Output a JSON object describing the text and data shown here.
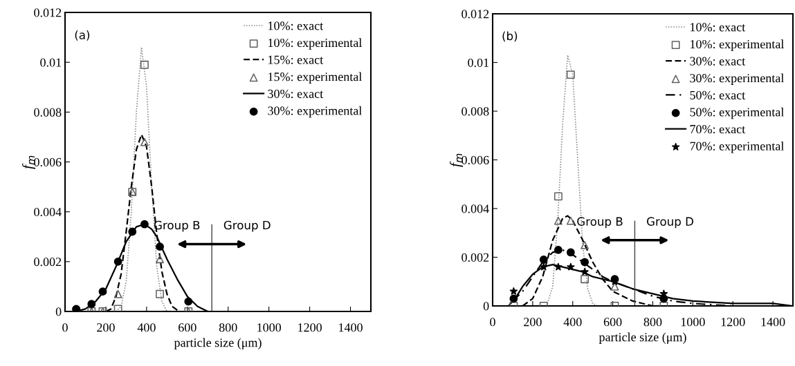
{
  "chart_data": [
    {
      "type": "line",
      "xlabel": "particle size (μm)",
      "ylabel": "f$_{m}$",
      "xlim": [
        0,
        1500
      ],
      "ylim": [
        0,
        0.012
      ],
      "xticks": [
        0,
        200,
        400,
        600,
        800,
        1000,
        1200,
        1400
      ],
      "yticks": [
        0,
        0.002,
        0.004,
        0.006,
        0.008,
        0.01,
        0.012
      ],
      "legend": "top right",
      "grid": false,
      "annotations": [
        "(a)",
        "Group B",
        "Group D"
      ],
      "ref_lines": [
        {
          "axis": "x",
          "value": 720,
          "color": "#404040"
        }
      ],
      "series": [
        {
          "name": "10%: exact",
          "type": "line",
          "line_style": "dotted",
          "color": "#909090",
          "x": [
            200,
            250,
            275,
            300,
            325,
            350,
            375,
            400,
            425,
            450,
            475,
            500,
            550
          ],
          "values": [
            0,
            0,
            0.0002,
            0.0012,
            0.004,
            0.008,
            0.0106,
            0.009,
            0.005,
            0.0018,
            0.0004,
            0,
            0
          ]
        },
        {
          "name": "10%: experimental",
          "type": "scatter",
          "marker": "square",
          "color": "#606060",
          "x": [
            55,
            130,
            185,
            260,
            330,
            390,
            465,
            605
          ],
          "values": [
            0,
            0,
            0,
            0.0001,
            0.0048,
            0.0099,
            0.0007,
            0
          ]
        },
        {
          "name": "15%: exact",
          "type": "line",
          "line_style": "dashed",
          "color": "#000000",
          "x": [
            200,
            225,
            250,
            275,
            300,
            325,
            350,
            375,
            400,
            425,
            450,
            475,
            500,
            525,
            560,
            600
          ],
          "values": [
            0,
            0.0001,
            0.0006,
            0.0015,
            0.0032,
            0.005,
            0.0065,
            0.0071,
            0.0066,
            0.005,
            0.0031,
            0.0016,
            0.0007,
            0.0002,
            0,
            0
          ]
        },
        {
          "name": "15%: experimental",
          "type": "scatter",
          "marker": "triangle",
          "color": "#606060",
          "x": [
            130,
            185,
            260,
            330,
            390,
            465,
            605
          ],
          "values": [
            0,
            0,
            0.0007,
            0.0048,
            0.0068,
            0.0021,
            0
          ]
        },
        {
          "name": "30%: exact",
          "type": "line",
          "line_style": "solid",
          "color": "#000000",
          "x": [
            50,
            100,
            150,
            200,
            250,
            300,
            350,
            390,
            425,
            450,
            500,
            550,
            600,
            650,
            700,
            720
          ],
          "values": [
            0,
            0.0001,
            0.0004,
            0.0009,
            0.0018,
            0.0028,
            0.0034,
            0.0035,
            0.0033,
            0.003,
            0.0021,
            0.0013,
            0.0006,
            0.0002,
            0,
            0
          ]
        },
        {
          "name": "30%: experimental",
          "type": "scatter",
          "marker": "circle",
          "color": "#000000",
          "x": [
            55,
            130,
            185,
            260,
            330,
            390,
            465,
            605
          ],
          "values": [
            0.0001,
            0.0003,
            0.0008,
            0.002,
            0.0032,
            0.0035,
            0.0026,
            0.0004
          ]
        }
      ]
    },
    {
      "type": "line",
      "xlabel": "particle size (μm)",
      "ylabel": "f$_{m}$",
      "xlim": [
        0,
        1500
      ],
      "ylim": [
        0,
        0.012
      ],
      "xticks": [
        0,
        200,
        400,
        600,
        800,
        1000,
        1200,
        1400
      ],
      "yticks": [
        0,
        0.002,
        0.004,
        0.006,
        0.008,
        0.01,
        0.012
      ],
      "legend": "top right",
      "grid": false,
      "annotations": [
        "(b)",
        "Group B",
        "Group D"
      ],
      "ref_lines": [
        {
          "axis": "x",
          "value": 710,
          "color": "#404040"
        }
      ],
      "series": [
        {
          "name": "10%: exact",
          "type": "line",
          "line_style": "dotted",
          "color": "#909090",
          "x": [
            270,
            300,
            325,
            350,
            375,
            400,
            425,
            450,
            475,
            500,
            525
          ],
          "values": [
            0,
            0.0008,
            0.0035,
            0.0075,
            0.0103,
            0.0095,
            0.006,
            0.0025,
            0.0007,
            0.0001,
            0
          ]
        },
        {
          "name": "10%: experimental",
          "type": "scatter",
          "marker": "square",
          "color": "#606060",
          "x": [
            105,
            255,
            328,
            390,
            460,
            610,
            855
          ],
          "values": [
            0,
            0,
            0.0045,
            0.0095,
            0.0011,
            0,
            0
          ]
        },
        {
          "name": "30%: exact",
          "type": "line",
          "line_style": "dashed",
          "color": "#000000",
          "x": [
            150,
            200,
            250,
            300,
            350,
            375,
            400,
            450,
            500,
            550,
            600,
            650,
            700,
            750,
            800,
            850
          ],
          "values": [
            0,
            0.0003,
            0.0012,
            0.0027,
            0.0036,
            0.0037,
            0.0035,
            0.0027,
            0.0018,
            0.0011,
            0.0006,
            0.0004,
            0.0002,
            0.0001,
            0,
            0
          ]
        },
        {
          "name": "30%: experimental",
          "type": "scatter",
          "marker": "triangle",
          "color": "#606060",
          "x": [
            328,
            390,
            460,
            610
          ],
          "values": [
            0.0035,
            0.0035,
            0.0025,
            0.0008
          ]
        },
        {
          "name": "50%: exact",
          "type": "line",
          "line_style": "dashdot",
          "color": "#000000",
          "x": [
            100,
            150,
            200,
            250,
            300,
            350,
            400,
            450,
            500,
            550,
            600,
            700,
            800,
            900,
            1000,
            1200,
            1500
          ],
          "values": [
            0.0002,
            0.0006,
            0.0012,
            0.0018,
            0.0022,
            0.0023,
            0.0021,
            0.0018,
            0.0015,
            0.0012,
            0.001,
            0.0007,
            0.0004,
            0.0002,
            0.0001,
            0,
            0
          ]
        },
        {
          "name": "50%: experimental",
          "type": "scatter",
          "marker": "circle",
          "color": "#000000",
          "x": [
            105,
            255,
            328,
            390,
            460,
            610,
            855
          ],
          "values": [
            0.0003,
            0.0019,
            0.0023,
            0.0022,
            0.0018,
            0.0011,
            0.0003
          ]
        },
        {
          "name": "70%: exact",
          "type": "line",
          "line_style": "solid",
          "color": "#000000",
          "x": [
            50,
            80,
            120,
            150,
            200,
            250,
            300,
            350,
            400,
            450,
            500,
            600,
            700,
            800,
            900,
            1000,
            1200,
            1400,
            1500
          ],
          "values": [
            0,
            0,
            0.0004,
            0.0008,
            0.0013,
            0.0016,
            0.0017,
            0.0016,
            0.0015,
            0.0014,
            0.0012,
            0.001,
            0.0007,
            0.0005,
            0.0003,
            0.0002,
            0.0001,
            0.0001,
            0
          ]
        },
        {
          "name": "70%: experimental",
          "type": "scatter",
          "marker": "star",
          "color": "#000000",
          "x": [
            105,
            255,
            328,
            390,
            460,
            610,
            855
          ],
          "values": [
            0.0006,
            0.0016,
            0.0016,
            0.0016,
            0.0014,
            0.001,
            0.0005
          ]
        }
      ]
    }
  ]
}
